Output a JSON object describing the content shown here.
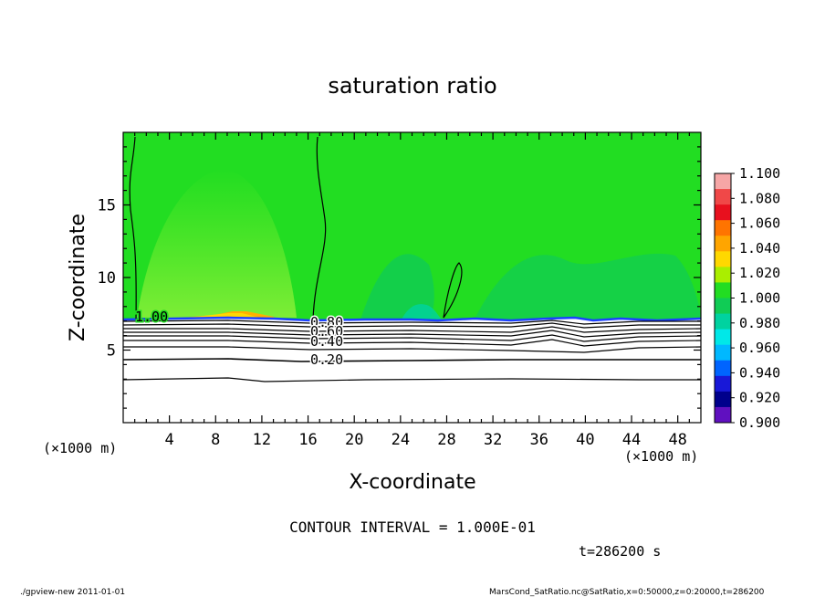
{
  "chart_data": {
    "type": "heatmap",
    "title": "saturation ratio",
    "xlabel": "X-coordinate",
    "ylabel": "Z-coordinate",
    "x_unit": "(×1000 m)",
    "y_unit": "(×1000 m)",
    "xlim": [
      0,
      50
    ],
    "ylim": [
      0,
      20
    ],
    "xticks": [
      "4",
      "8",
      "12",
      "16",
      "20",
      "24",
      "28",
      "32",
      "36",
      "40",
      "44",
      "48"
    ],
    "yticks": [
      "5",
      "10",
      "15"
    ],
    "colorbar": {
      "levels": [
        "1.100",
        "1.080",
        "1.060",
        "1.040",
        "1.020",
        "1.000",
        "0.980",
        "0.960",
        "0.940",
        "0.920",
        "0.900"
      ],
      "colors": [
        "#f6a6a6",
        "#f04848",
        "#e8101e",
        "#ff7400",
        "#ffa500",
        "#ffd800",
        "#aaee00",
        "#22dd22",
        "#10cc55",
        "#00d2a0",
        "#00e8e8",
        "#00b8ff",
        "#0064ff",
        "#1818d8",
        "#00008c",
        "#6010c0"
      ]
    },
    "contour_labels": [
      "1.00",
      "0.80",
      "0.60",
      "0.40",
      "0.20"
    ],
    "contour_interval_text": "CONTOUR INTERVAL = 1.000E-01",
    "time_text": "t=286200 s"
  },
  "footer": {
    "left": "./gpview-new   2011-01-01",
    "right": "MarsCond_SatRatio.nc@SatRatio,x=0:50000,z=0:20000,t=286200"
  }
}
